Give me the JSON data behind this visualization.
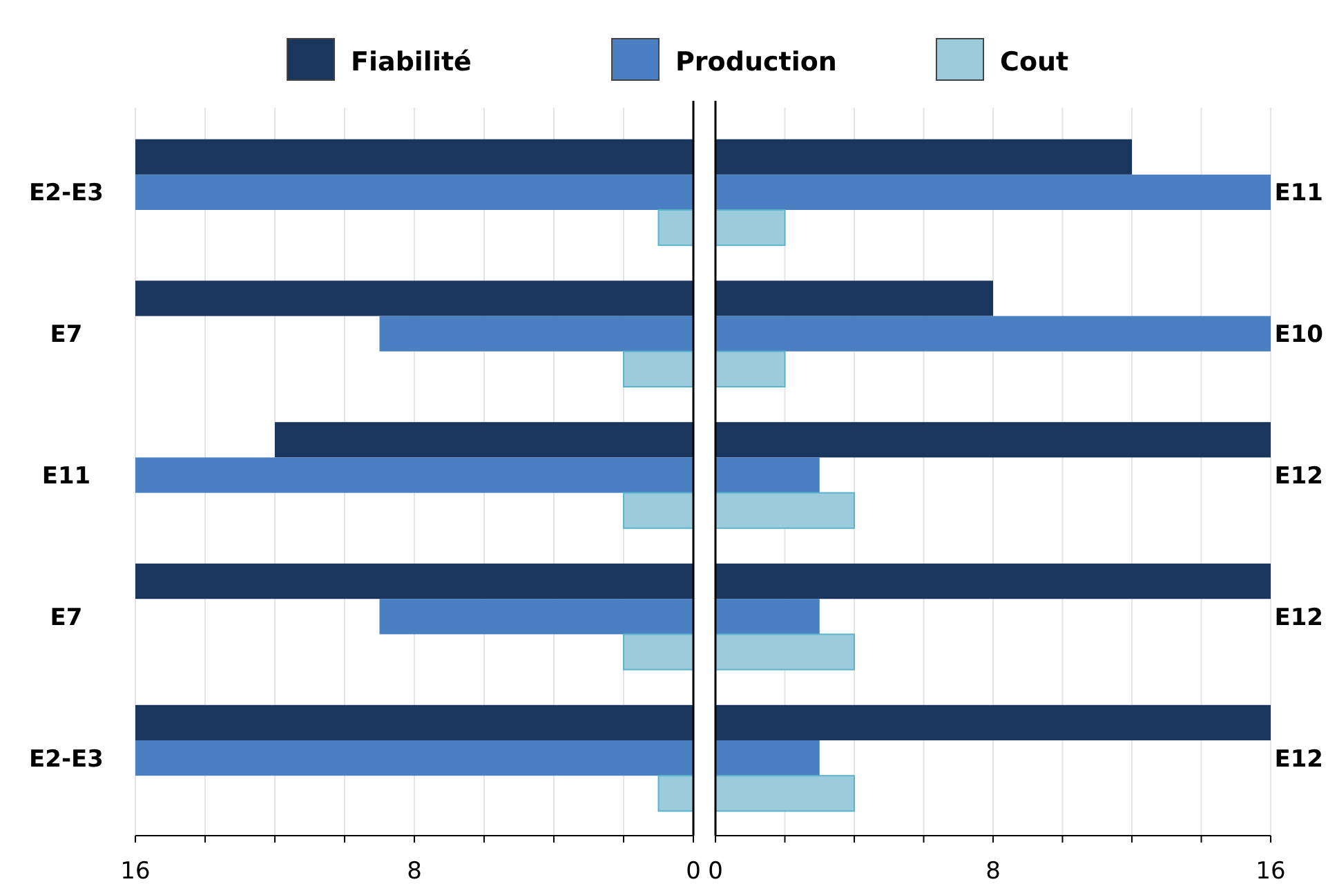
{
  "chart_data": [
    {
      "type": "bar",
      "orientation": "horizontal",
      "categories": [
        "E2-E3",
        "E7",
        "E11",
        "E7",
        "E2-E3"
      ],
      "xlim": [
        16,
        0
      ],
      "xticks": [
        16,
        {
          "value": 14,
          "label": null
        },
        {
          "value": 12,
          "label": null
        },
        {
          "value": 10,
          "label": null
        },
        8,
        {
          "value": 6,
          "label": null
        },
        {
          "value": 4,
          "label": null
        },
        {
          "value": 2,
          "label": null
        },
        0
      ],
      "grid": "x",
      "legend": "top",
      "series": [
        {
          "name": "Fiabilité",
          "color": "#1b365d",
          "values": [
            16,
            16,
            12,
            16,
            16
          ]
        },
        {
          "name": "Production",
          "color": "#4a7fc1",
          "values": [
            16,
            9,
            16,
            9,
            16
          ]
        },
        {
          "name": "Cout",
          "color": "#9ccbdb",
          "values": [
            1,
            2,
            2,
            2,
            1
          ]
        }
      ]
    },
    {
      "type": "bar",
      "orientation": "horizontal",
      "categories": [
        "E11",
        "E10",
        "E12",
        "E12",
        "E12"
      ],
      "xlim": [
        0,
        16
      ],
      "xticks": [
        0,
        {
          "value": 2,
          "label": null
        },
        {
          "value": 4,
          "label": null
        },
        {
          "value": 6,
          "label": null
        },
        8,
        {
          "value": 10,
          "label": null
        },
        {
          "value": 12,
          "label": null
        },
        {
          "value": 14,
          "label": null
        },
        16
      ],
      "grid": "x",
      "series": [
        {
          "color": "#1b365d",
          "values": [
            12,
            8,
            16,
            16,
            16
          ]
        },
        {
          "color": "#4a7fc1",
          "values": [
            16,
            16,
            3,
            3,
            3
          ]
        },
        {
          "color": "#9ccbdb",
          "values": [
            2,
            2,
            4,
            4,
            4
          ]
        }
      ]
    }
  ]
}
